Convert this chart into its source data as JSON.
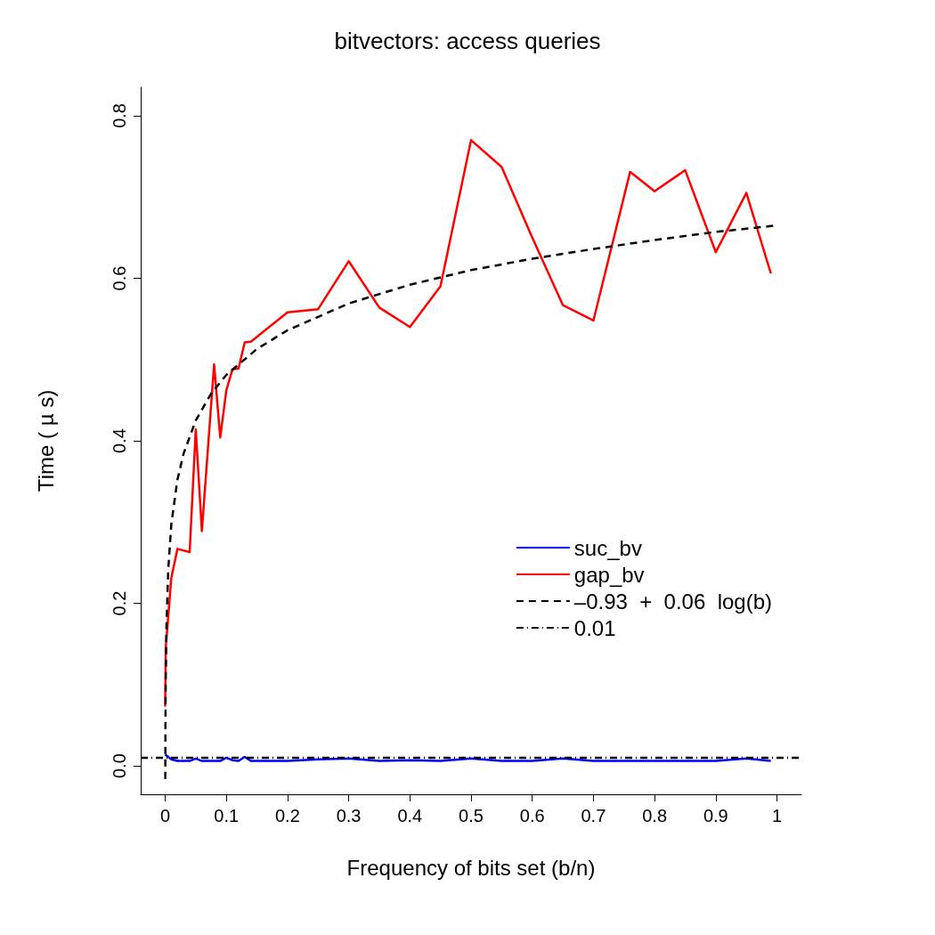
{
  "chart_data": {
    "type": "line",
    "title": "bitvectors: access queries",
    "xlabel": "Frequency of bits set (b/n)",
    "ylabel": "Time ( µ s)",
    "xlim": [
      -0.04,
      1.04
    ],
    "ylim": [
      -0.035,
      0.835
    ],
    "xticks": [
      0,
      0.1,
      0.2,
      0.3,
      0.4,
      0.5,
      0.6,
      0.7,
      0.8,
      0.9,
      1
    ],
    "yticks": [
      {
        "value": 0,
        "label": "0.0"
      },
      {
        "value": 0.2,
        "label": "0.2"
      },
      {
        "value": 0.4,
        "label": "0.4"
      },
      {
        "value": 0.6,
        "label": "0.6"
      },
      {
        "value": 0.8,
        "label": "0.8"
      }
    ],
    "grid": false,
    "legend": "right",
    "marker": "none",
    "series": [
      {
        "name": "suc_bv",
        "color": "#0000ff",
        "line_style": "solid",
        "x": [
          0,
          0.01,
          0.02,
          0.04,
          0.05,
          0.06,
          0.08,
          0.09,
          0.1,
          0.11,
          0.12,
          0.13,
          0.14,
          0.2,
          0.25,
          0.3,
          0.35,
          0.4,
          0.45,
          0.5,
          0.55,
          0.6,
          0.65,
          0.7,
          0.75,
          0.8,
          0.85,
          0.9,
          0.95,
          0.99
        ],
        "values": [
          0.014,
          0.008,
          0.006,
          0.006,
          0.009,
          0.006,
          0.006,
          0.006,
          0.01,
          0.007,
          0.006,
          0.011,
          0.006,
          0.006,
          0.008,
          0.009,
          0.006,
          0.007,
          0.006,
          0.009,
          0.006,
          0.006,
          0.009,
          0.006,
          0.006,
          0.006,
          0.006,
          0.006,
          0.009,
          0.006
        ]
      },
      {
        "name": "gap_bv",
        "color": "#ff0000",
        "line_style": "solid",
        "x": [
          0,
          0.001,
          0.01,
          0.02,
          0.04,
          0.05,
          0.06,
          0.08,
          0.09,
          0.1,
          0.11,
          0.12,
          0.13,
          0.14,
          0.2,
          0.25,
          0.3,
          0.35,
          0.4,
          0.45,
          0.5,
          0.55,
          0.6,
          0.65,
          0.7,
          0.76,
          0.8,
          0.85,
          0.9,
          0.95,
          0.99
        ],
        "values": [
          0.073,
          0.146,
          0.231,
          0.267,
          0.263,
          0.414,
          0.289,
          0.494,
          0.404,
          0.462,
          0.488,
          0.489,
          0.521,
          0.522,
          0.558,
          0.562,
          0.621,
          0.564,
          0.54,
          0.59,
          0.77,
          0.737,
          0.65,
          0.567,
          0.548,
          0.731,
          0.707,
          0.733,
          0.632,
          0.705,
          0.606
        ]
      },
      {
        "name": "–0.93  +  0.06  log(b)",
        "type": "line",
        "color": "#000000",
        "line_style": "dashed",
        "x": [
          0.0002,
          0.0005,
          0.001,
          0.002,
          0.005,
          0.01,
          0.02,
          0.03,
          0.05,
          0.075,
          0.1,
          0.15,
          0.2,
          0.3,
          0.4,
          0.5,
          0.6,
          0.7,
          0.8,
          0.9,
          1
        ],
        "values": [
          -0.016,
          0.057,
          0.112,
          0.168,
          0.241,
          0.297,
          0.352,
          0.384,
          0.425,
          0.458,
          0.481,
          0.513,
          0.536,
          0.569,
          0.592,
          0.61,
          0.624,
          0.636,
          0.647,
          0.657,
          0.665
        ]
      },
      {
        "name": "0.01",
        "type": "line",
        "color": "#000000",
        "line_style": "dashdot",
        "x": [
          -0.04,
          1.04
        ],
        "values": [
          0.01,
          0.01
        ]
      }
    ]
  }
}
